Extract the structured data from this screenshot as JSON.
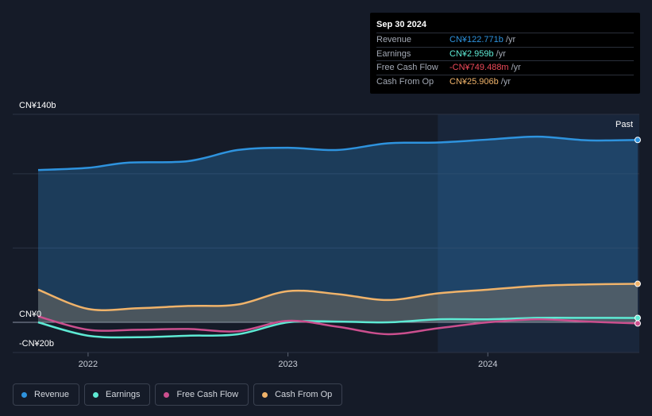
{
  "tooltip": {
    "date": "Sep 30 2024",
    "rows": [
      {
        "label": "Revenue",
        "value": "CN¥122.771b",
        "unit": "/yr",
        "color": "#2e93de"
      },
      {
        "label": "Earnings",
        "value": "CN¥2.959b",
        "unit": "/yr",
        "color": "#5eead4"
      },
      {
        "label": "Free Cash Flow",
        "value": "-CN¥749.488m",
        "unit": "/yr",
        "color": "#f04a5a"
      },
      {
        "label": "Cash From Op",
        "value": "CN¥25.906b",
        "unit": "/yr",
        "color": "#f0b36a"
      }
    ]
  },
  "chart_data": {
    "type": "line",
    "ylim": [
      -20,
      140
    ],
    "y_labels": {
      "top": "CN¥140b",
      "zero": "CN¥0",
      "bottom": "-CN¥20b"
    },
    "x_ticks": [
      {
        "label": "2022",
        "x": 2022.0
      },
      {
        "label": "2023",
        "x": 2023.0
      },
      {
        "label": "2024",
        "x": 2024.0
      }
    ],
    "x_range": [
      2021.75,
      2024.75
    ],
    "past_start": 2023.75,
    "past_label": "Past",
    "series": [
      {
        "name": "Revenue",
        "color": "#2e93de",
        "fill": true,
        "points": [
          [
            2021.75,
            102.5
          ],
          [
            2022.0,
            104
          ],
          [
            2022.2,
            107.5
          ],
          [
            2022.5,
            108.5
          ],
          [
            2022.75,
            116
          ],
          [
            2023.0,
            117.5
          ],
          [
            2023.25,
            116
          ],
          [
            2023.5,
            120.5
          ],
          [
            2023.75,
            121
          ],
          [
            2024.0,
            123
          ],
          [
            2024.25,
            125
          ],
          [
            2024.5,
            122.5
          ],
          [
            2024.75,
            122.771
          ]
        ]
      },
      {
        "name": "Earnings",
        "color": "#5eead4",
        "fill": false,
        "points": [
          [
            2021.75,
            0
          ],
          [
            2022.0,
            -9
          ],
          [
            2022.25,
            -10
          ],
          [
            2022.5,
            -9
          ],
          [
            2022.75,
            -8
          ],
          [
            2023.0,
            0
          ],
          [
            2023.25,
            0.5
          ],
          [
            2023.5,
            0
          ],
          [
            2023.75,
            2
          ],
          [
            2024.0,
            2
          ],
          [
            2024.25,
            3
          ],
          [
            2024.5,
            3
          ],
          [
            2024.75,
            2.959
          ]
        ]
      },
      {
        "name": "Free Cash Flow",
        "color": "#cb4f8e",
        "fill": false,
        "points": [
          [
            2021.75,
            4
          ],
          [
            2022.0,
            -5
          ],
          [
            2022.25,
            -5
          ],
          [
            2022.5,
            -4.5
          ],
          [
            2022.75,
            -6
          ],
          [
            2023.0,
            1
          ],
          [
            2023.25,
            -3
          ],
          [
            2023.5,
            -8
          ],
          [
            2023.75,
            -4
          ],
          [
            2024.0,
            0
          ],
          [
            2024.25,
            2
          ],
          [
            2024.5,
            0.5
          ],
          [
            2024.75,
            -0.749
          ]
        ]
      },
      {
        "name": "Cash From Op",
        "color": "#f0b36a",
        "fill": true,
        "points": [
          [
            2021.75,
            22
          ],
          [
            2022.0,
            9
          ],
          [
            2022.25,
            9.5
          ],
          [
            2022.5,
            11
          ],
          [
            2022.75,
            12
          ],
          [
            2023.0,
            21
          ],
          [
            2023.25,
            19
          ],
          [
            2023.5,
            15
          ],
          [
            2023.75,
            19.5
          ],
          [
            2024.0,
            22
          ],
          [
            2024.25,
            24.5
          ],
          [
            2024.5,
            25.5
          ],
          [
            2024.75,
            25.906
          ]
        ]
      }
    ]
  },
  "legend": [
    {
      "label": "Revenue",
      "color": "#2e93de"
    },
    {
      "label": "Earnings",
      "color": "#5eead4"
    },
    {
      "label": "Free Cash Flow",
      "color": "#cb4f8e"
    },
    {
      "label": "Cash From Op",
      "color": "#f0b36a"
    }
  ]
}
